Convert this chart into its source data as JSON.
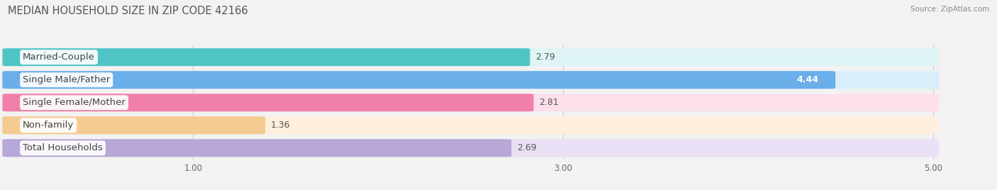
{
  "title": "MEDIAN HOUSEHOLD SIZE IN ZIP CODE 42166",
  "source": "Source: ZipAtlas.com",
  "categories": [
    "Married-Couple",
    "Single Male/Father",
    "Single Female/Mother",
    "Non-family",
    "Total Households"
  ],
  "values": [
    2.79,
    4.44,
    2.81,
    1.36,
    2.69
  ],
  "bar_colors": [
    "#4ec4c4",
    "#6aaeea",
    "#f080aa",
    "#f5ca90",
    "#b8a8d8"
  ],
  "bar_bg_colors": [
    "#dff4f4",
    "#d8eefa",
    "#fde0ec",
    "#feeedd",
    "#eae0f5"
  ],
  "xlim": [
    0,
    5.3
  ],
  "xdata_max": 5.0,
  "xticks": [
    1.0,
    3.0,
    5.0
  ],
  "xtick_labels": [
    "1.00",
    "3.00",
    "5.00"
  ],
  "title_fontsize": 10.5,
  "label_fontsize": 9.5,
  "value_fontsize": 9,
  "background_color": "#f2f2f2",
  "bar_gap_color": "#f2f2f2"
}
